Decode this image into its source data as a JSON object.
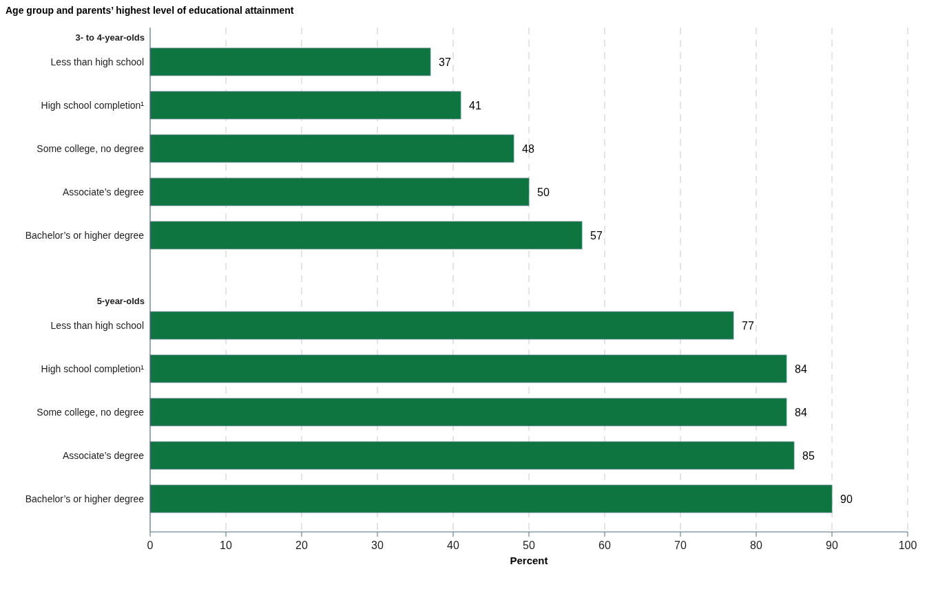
{
  "chart_data": {
    "type": "bar",
    "orientation": "horizontal",
    "title": "Age group and parents’ highest level of educational attainment",
    "xlabel": "Percent",
    "categories": [
      "3- to 4-year-olds",
      "Less than high school",
      "High school completion¹",
      "Some college, no degree",
      "Associate’s degree",
      "Bachelor’s or higher degree",
      null,
      "5-year-olds",
      "Less than high school",
      "High school completion¹",
      "Some college, no degree",
      "Associate’s degree",
      "Bachelor’s or higher degree"
    ],
    "values": [
      null,
      37,
      41,
      48,
      50,
      57,
      null,
      null,
      77,
      84,
      84,
      85,
      90
    ],
    "color": "#0e7540",
    "xlim": [
      0,
      100
    ],
    "xticks": [
      0,
      10,
      20,
      30,
      40,
      50,
      60,
      70,
      80,
      90,
      100
    ],
    "grid": "x",
    "data_labels": true
  }
}
